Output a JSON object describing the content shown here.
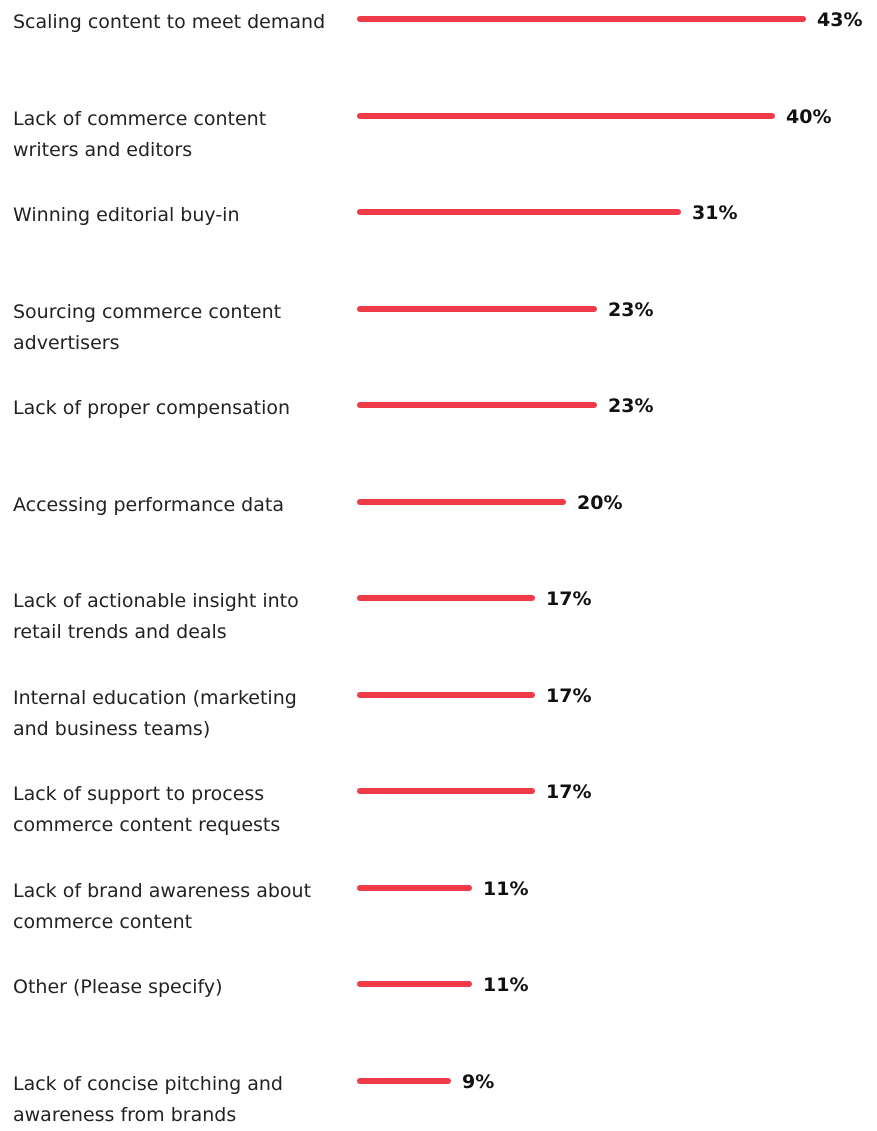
{
  "chart_data": {
    "type": "bar",
    "orientation": "horizontal",
    "title": "",
    "xlabel": "",
    "ylabel": "",
    "bar_color": "#ef3a47",
    "grid": false,
    "legend": "none",
    "xlim": [
      0,
      43
    ],
    "categories": [
      "Scaling content to meet demand",
      "Lack of commerce content\nwriters and editors",
      "Winning editorial buy-in",
      "Sourcing commerce content\nadvertisers",
      "Lack of proper compensation",
      "Accessing performance data",
      "Lack of actionable insight into\nretail trends and deals",
      "Internal education (marketing\nand business teams)",
      "Lack of support to process\ncommerce content requests",
      "Lack of brand awareness about\ncommerce content",
      "Other (Please specify)",
      "Lack of concise pitching and\nawareness from brands"
    ],
    "values": [
      43,
      40,
      31,
      23,
      23,
      20,
      17,
      17,
      17,
      11,
      11,
      9
    ],
    "value_labels": [
      "43%",
      "40%",
      "31%",
      "23%",
      "23%",
      "20%",
      "17%",
      "17%",
      "17%",
      "11%",
      "11%",
      "9%"
    ]
  }
}
